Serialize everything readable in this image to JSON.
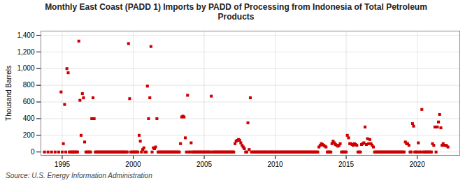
{
  "chart_data": {
    "type": "scatter",
    "title": "Monthly East Coast (PADD 1) Imports by PADD of Processing from Indonesia of Total Petroleum\nProducts",
    "ylabel": "Thousand Barrels",
    "source": "Source: U.S. Energy Information Administration",
    "color": "#cc0000",
    "marker": "square",
    "grid": true,
    "xlim": [
      1993.5,
      2023.0
    ],
    "ylim": [
      -40,
      1450
    ],
    "xticks": [
      1995,
      2000,
      2005,
      2010,
      2015,
      2020
    ],
    "yticks": [
      0,
      200,
      400,
      600,
      800,
      {
        "value": 1000,
        "label": "1,000"
      },
      {
        "value": 1200,
        "label": "1,200"
      },
      {
        "value": 1400,
        "label": "1,400"
      }
    ],
    "x": [
      1993.75,
      1994.0,
      1994.25,
      1994.5,
      1994.75,
      1994.92,
      1995.0,
      1995.08,
      1995.17,
      1995.25,
      1995.33,
      1995.42,
      1995.5,
      1995.58,
      1995.67,
      1995.75,
      1995.83,
      1995.92,
      1996.0,
      1996.08,
      1996.17,
      1996.25,
      1996.33,
      1996.42,
      1996.5,
      1996.58,
      1996.67,
      1996.75,
      1996.83,
      1996.92,
      1997.0,
      1997.08,
      1997.17,
      1997.25,
      1997.33,
      1997.42,
      1997.5,
      1997.58,
      1997.67,
      1997.75,
      1997.83,
      1997.92,
      1998.0,
      1998.08,
      1998.17,
      1998.25,
      1998.33,
      1998.42,
      1998.5,
      1998.58,
      1998.67,
      1998.75,
      1998.83,
      1998.92,
      1999.0,
      1999.08,
      1999.17,
      1999.25,
      1999.33,
      1999.42,
      1999.5,
      1999.58,
      1999.67,
      1999.75,
      1999.83,
      1999.92,
      2000.0,
      2000.08,
      2000.17,
      2000.25,
      2000.33,
      2000.42,
      2000.5,
      2000.58,
      2000.67,
      2000.75,
      2000.83,
      2000.92,
      2001.0,
      2001.08,
      2001.17,
      2001.25,
      2001.33,
      2001.42,
      2001.5,
      2001.58,
      2001.67,
      2001.75,
      2001.83,
      2001.92,
      2002.0,
      2002.08,
      2002.17,
      2002.25,
      2002.33,
      2002.42,
      2002.5,
      2002.58,
      2002.67,
      2002.75,
      2002.83,
      2002.92,
      2003.0,
      2003.08,
      2003.17,
      2003.25,
      2003.33,
      2003.42,
      2003.5,
      2003.58,
      2003.67,
      2003.75,
      2003.83,
      2003.92,
      2004.0,
      2004.08,
      2004.17,
      2004.25,
      2004.33,
      2004.42,
      2004.5,
      2004.58,
      2004.67,
      2004.75,
      2004.83,
      2004.92,
      2005.0,
      2005.08,
      2005.17,
      2005.25,
      2005.33,
      2005.42,
      2005.5,
      2005.58,
      2005.67,
      2005.75,
      2005.83,
      2005.92,
      2006.0,
      2006.08,
      2006.17,
      2006.25,
      2006.33,
      2006.42,
      2006.5,
      2006.58,
      2006.67,
      2006.75,
      2006.83,
      2006.92,
      2007.0,
      2007.08,
      2007.17,
      2007.25,
      2007.33,
      2007.42,
      2007.5,
      2007.58,
      2007.67,
      2007.75,
      2007.83,
      2007.92,
      2008.0,
      2008.08,
      2008.17,
      2008.25,
      2008.33,
      2008.42,
      2008.5,
      2008.58,
      2008.67,
      2008.75,
      2008.83,
      2008.92,
      2009.0,
      2009.08,
      2009.17,
      2009.25,
      2009.33,
      2009.42,
      2009.5,
      2009.58,
      2009.67,
      2009.75,
      2009.83,
      2009.92,
      2010.0,
      2010.08,
      2010.17,
      2010.25,
      2010.33,
      2010.42,
      2010.5,
      2010.58,
      2010.67,
      2010.75,
      2010.83,
      2010.92,
      2011.0,
      2011.08,
      2011.17,
      2011.25,
      2011.33,
      2011.42,
      2011.5,
      2011.58,
      2011.67,
      2011.75,
      2011.83,
      2011.92,
      2012.0,
      2012.08,
      2012.17,
      2012.25,
      2012.33,
      2012.42,
      2012.5,
      2012.58,
      2012.67,
      2012.75,
      2012.83,
      2012.92,
      2013.0,
      2013.08,
      2013.17,
      2013.25,
      2013.33,
      2013.42,
      2013.5,
      2013.58,
      2013.67,
      2013.75,
      2013.83,
      2013.92,
      2014.0,
      2014.08,
      2014.17,
      2014.25,
      2014.33,
      2014.42,
      2014.5,
      2014.58,
      2014.67,
      2014.75,
      2014.83,
      2014.92,
      2015.0,
      2015.08,
      2015.17,
      2015.25,
      2015.33,
      2015.42,
      2015.5,
      2015.58,
      2015.67,
      2015.75,
      2015.83,
      2015.92,
      2016.0,
      2016.08,
      2016.17,
      2016.25,
      2016.33,
      2016.42,
      2016.5,
      2016.58,
      2016.67,
      2016.75,
      2016.83,
      2016.92,
      2017.0,
      2017.08,
      2017.17,
      2017.25,
      2017.33,
      2017.42,
      2017.5,
      2017.58,
      2017.67,
      2017.75,
      2017.83,
      2017.92,
      2018.0,
      2018.08,
      2018.17,
      2018.25,
      2018.33,
      2018.42,
      2018.5,
      2018.58,
      2018.67,
      2018.75,
      2018.83,
      2018.92,
      2019.0,
      2019.08,
      2019.17,
      2019.25,
      2019.33,
      2019.42,
      2019.5,
      2019.58,
      2019.67,
      2019.75,
      2019.83,
      2019.92,
      2020.0,
      2020.08,
      2020.17,
      2020.25,
      2020.33,
      2020.42,
      2020.5,
      2020.58,
      2020.67,
      2020.75,
      2020.83,
      2020.92,
      2021.0,
      2021.08,
      2021.17,
      2021.25,
      2021.33,
      2021.42,
      2021.5,
      2021.58,
      2021.67,
      2021.75,
      2021.83,
      2021.92,
      2022.0,
      2022.08,
      2022.17
    ],
    "values": [
      0,
      0,
      0,
      0,
      0,
      720,
      0,
      100,
      570,
      0,
      1000,
      950,
      0,
      0,
      0,
      0,
      0,
      0,
      0,
      0,
      1330,
      620,
      200,
      700,
      650,
      120,
      0,
      0,
      0,
      0,
      0,
      400,
      650,
      400,
      0,
      0,
      0,
      0,
      0,
      0,
      0,
      0,
      0,
      0,
      0,
      0,
      0,
      0,
      0,
      0,
      0,
      0,
      0,
      0,
      0,
      0,
      0,
      0,
      0,
      0,
      0,
      0,
      1300,
      640,
      0,
      0,
      0,
      0,
      0,
      0,
      0,
      200,
      130,
      0,
      30,
      50,
      0,
      0,
      790,
      400,
      650,
      1265,
      0,
      50,
      40,
      60,
      400,
      0,
      0,
      0,
      0,
      0,
      0,
      0,
      0,
      0,
      0,
      0,
      0,
      0,
      0,
      0,
      0,
      0,
      0,
      0,
      100,
      420,
      430,
      420,
      170,
      0,
      680,
      0,
      0,
      110,
      0,
      0,
      0,
      0,
      0,
      0,
      0,
      0,
      0,
      0,
      0,
      0,
      0,
      0,
      0,
      0,
      670,
      0,
      0,
      0,
      0,
      0,
      0,
      0,
      0,
      0,
      0,
      0,
      0,
      0,
      0,
      0,
      0,
      0,
      0,
      0,
      100,
      130,
      140,
      150,
      140,
      110,
      80,
      60,
      40,
      0,
      0,
      350,
      30,
      650,
      0,
      0,
      0,
      0,
      0,
      0,
      0,
      0,
      0,
      0,
      0,
      0,
      0,
      0,
      0,
      0,
      0,
      0,
      0,
      0,
      0,
      0,
      0,
      0,
      0,
      0,
      0,
      0,
      0,
      0,
      0,
      0,
      0,
      0,
      0,
      0,
      0,
      0,
      0,
      0,
      0,
      0,
      0,
      0,
      0,
      0,
      0,
      0,
      0,
      0,
      0,
      0,
      0,
      0,
      0,
      0,
      0,
      60,
      80,
      100,
      90,
      80,
      70,
      60,
      0,
      0,
      0,
      0,
      100,
      130,
      110,
      90,
      80,
      70,
      80,
      100,
      0,
      0,
      0,
      0,
      0,
      200,
      170,
      100,
      100,
      90,
      80,
      100,
      90,
      80,
      0,
      0,
      0,
      90,
      100,
      110,
      300,
      90,
      160,
      100,
      150,
      100,
      80,
      60,
      0,
      0,
      0,
      0,
      0,
      0,
      0,
      0,
      0,
      0,
      0,
      0,
      0,
      0,
      0,
      0,
      0,
      0,
      0,
      0,
      0,
      0,
      0,
      0,
      0,
      0,
      120,
      100,
      100,
      80,
      0,
      0,
      340,
      310,
      0,
      0,
      0,
      110,
      0,
      0,
      510,
      0,
      0,
      0,
      0,
      0,
      0,
      0,
      0,
      100,
      80,
      300,
      0,
      300,
      360,
      450,
      290,
      80,
      100,
      80,
      80,
      75,
      60
    ]
  }
}
